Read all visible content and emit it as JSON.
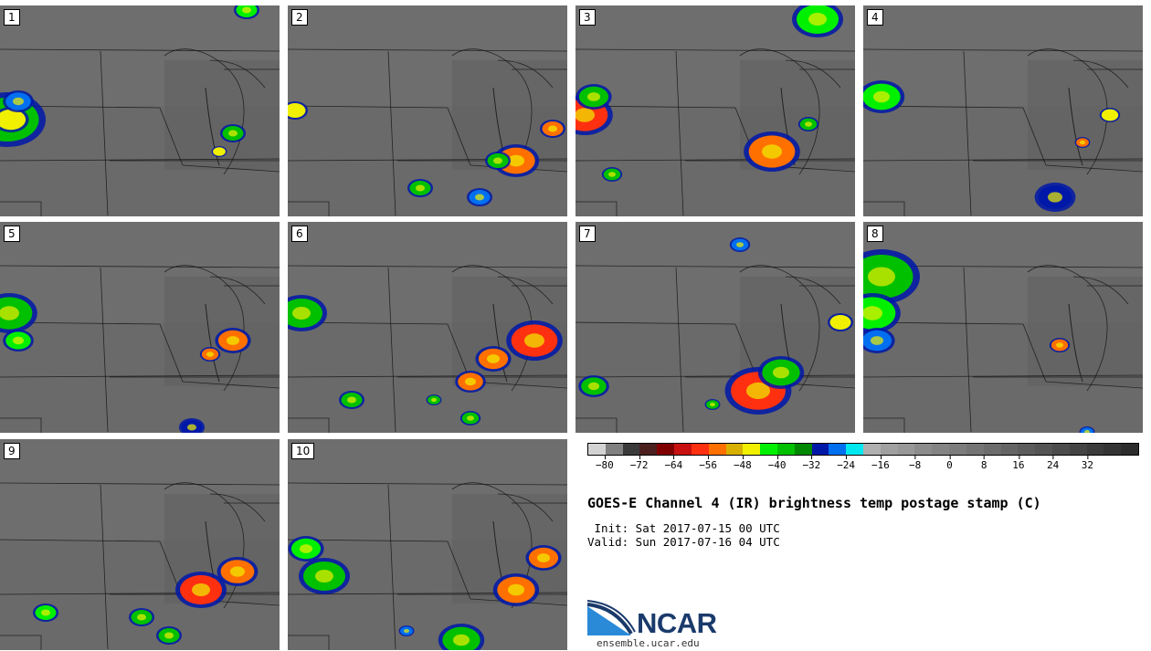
{
  "panels": [
    "1",
    "2",
    "3",
    "4",
    "5",
    "6",
    "7",
    "8",
    "9",
    "10"
  ],
  "colorbar": {
    "colors": [
      "#d3d3d3",
      "#808080",
      "#3a3a3a",
      "#4d2020",
      "#800000",
      "#c81010",
      "#ff3010",
      "#ff7000",
      "#d8b000",
      "#f0f000",
      "#00f000",
      "#00c000",
      "#008800",
      "#0018a8",
      "#0070f0",
      "#00e8ef",
      "#b0b0b0",
      "#a0a0a0",
      "#989898",
      "#8c8c8c",
      "#848484",
      "#7c7c7c",
      "#747474",
      "#6c6c6c",
      "#646464",
      "#5c5c5c",
      "#545454",
      "#4c4c4c",
      "#444444",
      "#3c3c3c",
      "#343434",
      "#2c2c2c"
    ],
    "tick_labels": [
      "−80",
      "−72",
      "−64",
      "−56",
      "−48",
      "−40",
      "−32",
      "−24",
      "−16",
      "−8",
      "0",
      "8",
      "16",
      "24",
      "32"
    ],
    "tick_values": [
      -80,
      -72,
      -64,
      -56,
      -48,
      -40,
      -32,
      -24,
      -16,
      -8,
      0,
      8,
      16,
      24,
      32
    ],
    "range": [
      -84,
      44
    ]
  },
  "title": "GOES-E Channel 4 (IR) brightness temp postage stamp (C)",
  "init": " Init: Sat 2017-07-15 00 UTC",
  "valid": "Valid: Sun 2017-07-16 04 UTC",
  "logo": {
    "text": "NCAR",
    "colors": {
      "blue": "#1a3a6b",
      "light": "#2a8ad8"
    }
  },
  "site": "ensemble.ucar.edu"
}
